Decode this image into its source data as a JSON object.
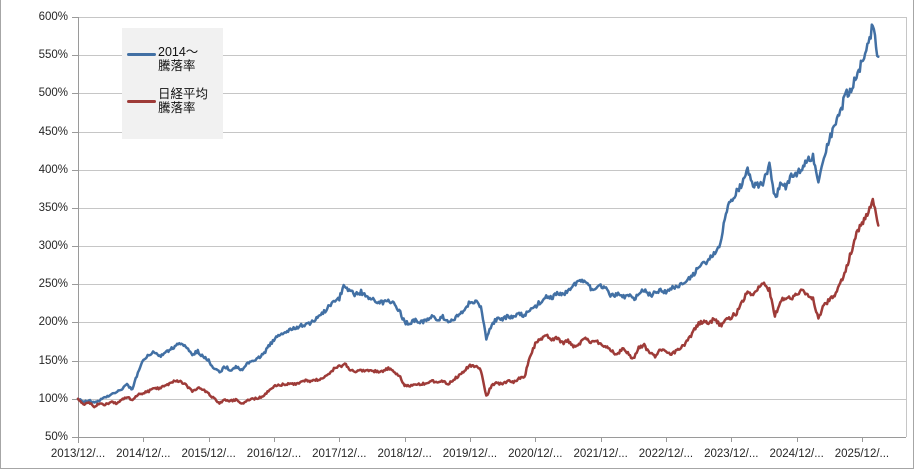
{
  "colors": {
    "background": "#ffffff",
    "gridline": "#c6c6c6",
    "axis": "#9a9a9a",
    "tick": "#9a9a9a",
    "label_text": "#262626",
    "legend_background": "#f1f1f1",
    "outer_border": "#a6a6a6",
    "series_blue": "#4270a4",
    "series_red": "#9e3b38"
  },
  "chart_data": {
    "type": "line",
    "title": "",
    "xlabel": "",
    "ylabel": "",
    "grid": true,
    "legend_position": "top-left",
    "y_axis": {
      "unit": "%",
      "min": 50,
      "max": 600,
      "step": 50,
      "tick_labels": [
        "50%",
        "100%",
        "150%",
        "200%",
        "250%",
        "300%",
        "350%",
        "400%",
        "450%",
        "500%",
        "550%",
        "600%"
      ]
    },
    "x_axis": {
      "tick_labels": [
        "2013/12/...",
        "2014/12/...",
        "2015/12/...",
        "2016/12/...",
        "2017/12/...",
        "2018/12/...",
        "2019/12/...",
        "2020/12/...",
        "2021/12/...",
        "2022/12/...",
        "2023/12/...",
        "2024/12/...",
        "2025/12/..."
      ],
      "points_per_year": 12,
      "start": "2013/12"
    },
    "legend": {
      "entries": [
        {
          "lines": [
            "2014〜",
            "騰落率"
          ]
        },
        {
          "lines": [
            "日経平均",
            "騰落率"
          ]
        }
      ]
    },
    "series": [
      {
        "name": "2014〜騰落率",
        "color": "#4270a4",
        "monthly_values_pct": [
          100,
          96,
          98,
          95,
          98,
          102,
          105,
          108,
          113,
          118,
          112,
          135,
          150,
          157,
          162,
          156,
          160,
          165,
          170,
          172,
          168,
          158,
          162,
          155,
          150,
          140,
          135,
          142,
          138,
          142,
          138,
          145,
          150,
          153,
          158,
          168,
          178,
          183,
          187,
          190,
          193,
          196,
          198,
          200,
          206,
          212,
          220,
          228,
          232,
          250,
          240,
          236,
          240,
          234,
          232,
          228,
          226,
          231,
          224,
          216,
          200,
          198,
          204,
          200,
          202,
          208,
          204,
          207,
          200,
          204,
          210,
          218,
          226,
          227,
          220,
          180,
          198,
          205,
          204,
          208,
          206,
          211,
          209,
          216,
          221,
          228,
          234,
          232,
          238,
          236,
          242,
          248,
          252,
          254,
          246,
          242,
          247,
          243,
          234,
          238,
          232,
          236,
          230,
          238,
          242,
          236,
          238,
          242,
          240,
          244,
          248,
          250,
          256,
          263,
          271,
          277,
          283,
          292,
          302,
          345,
          362,
          372,
          382,
          398,
          382,
          378,
          386,
          405,
          363,
          380,
          377,
          390,
          395,
          403,
          412,
          418,
          384,
          420,
          438,
          458,
          475,
          500,
          504,
          522,
          541,
          565,
          587,
          548
        ]
      },
      {
        "name": "日経平均騰落率",
        "color": "#9e3b38",
        "monthly_values_pct": [
          100,
          93,
          95,
          90,
          94,
          92,
          96,
          94,
          98,
          103,
          98,
          105,
          107,
          110,
          115,
          113,
          117,
          120,
          124,
          122,
          117,
          110,
          114,
          112,
          107,
          100,
          94,
          99,
          97,
          99,
          93,
          98,
          100,
          101,
          103,
          110,
          117,
          119,
          118,
          120,
          119,
          122,
          124,
          123,
          125,
          127,
          133,
          139,
          142,
          146,
          138,
          134,
          138,
          136,
          137,
          135,
          136,
          140,
          136,
          130,
          118,
          116,
          120,
          119,
          121,
          124,
          121,
          123,
          120,
          125,
          131,
          137,
          144,
          143,
          138,
          103,
          118,
          121,
          119,
          124,
          122,
          127,
          128,
          155,
          172,
          178,
          183,
          178,
          180,
          173,
          176,
          168,
          171,
          181,
          174,
          176,
          172,
          168,
          162,
          158,
          165,
          160,
          152,
          167,
          170,
          160,
          156,
          164,
          162,
          158,
          164,
          168,
          176,
          188,
          198,
          202,
          200,
          205,
          196,
          202,
          207,
          213,
          226,
          241,
          236,
          246,
          249,
          243,
          208,
          228,
          233,
          230,
          238,
          241,
          236,
          230,
          206,
          222,
          230,
          236,
          252,
          268,
          292,
          315,
          331,
          342,
          358,
          327
        ]
      }
    ]
  }
}
